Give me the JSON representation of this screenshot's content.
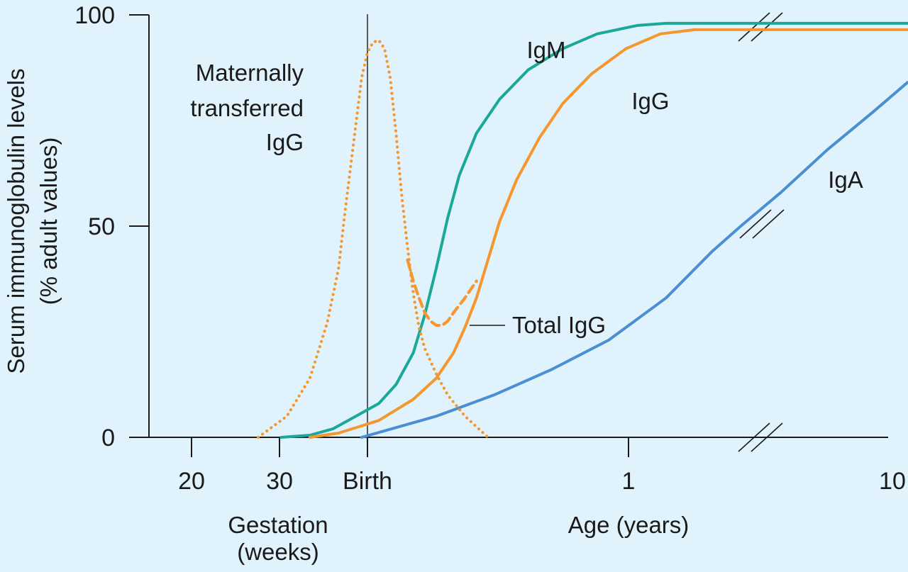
{
  "chart_data": {
    "type": "line",
    "title": "",
    "ylabel_lines": [
      "Serum immunoglobulin levels",
      "(% adult values)"
    ],
    "y_ticks": [
      0,
      50,
      100
    ],
    "ylim": [
      0,
      100
    ],
    "x_ticks": [
      {
        "label": "20"
      },
      {
        "label": "30"
      },
      {
        "label": "Birth"
      },
      {
        "label": "1"
      },
      {
        "label": "10"
      }
    ],
    "x_group_labels": [
      {
        "lines": [
          "Gestation",
          "(weeks)"
        ]
      },
      {
        "lines": [
          "Age (years)"
        ]
      }
    ],
    "axis_breaks": true,
    "grid": false,
    "legend": "none (direct labels)",
    "colors": {
      "IgM": "#1aa898",
      "IgG": "#f5962e",
      "IgA": "#4a8fd3",
      "marker": "#1a1a1a"
    },
    "series": [
      {
        "name": "IgM",
        "label_lines": [
          "IgM"
        ],
        "style": "solid",
        "color": "#1aa898",
        "points": [
          [
            23,
            0
          ],
          [
            28,
            0.5
          ],
          [
            32,
            2
          ],
          [
            36,
            5
          ],
          [
            40,
            8
          ],
          [
            43,
            12.5
          ],
          [
            46,
            20
          ],
          [
            48,
            29
          ],
          [
            50,
            40
          ],
          [
            52,
            52
          ],
          [
            54,
            62
          ],
          [
            57,
            72
          ],
          [
            61,
            80
          ],
          [
            66,
            87
          ],
          [
            72,
            92
          ],
          [
            78,
            95.5
          ],
          [
            85,
            97.5
          ],
          [
            90,
            98
          ],
          [
            120,
            98
          ],
          [
            132,
            98
          ]
        ]
      },
      {
        "name": "IgG",
        "label_lines": [
          "IgG"
        ],
        "style": "solid",
        "color": "#f5962e",
        "points": [
          [
            28,
            0
          ],
          [
            33,
            1
          ],
          [
            40,
            4
          ],
          [
            46,
            9
          ],
          [
            50,
            14
          ],
          [
            53,
            20
          ],
          [
            55,
            26
          ],
          [
            57,
            33
          ],
          [
            59,
            42
          ],
          [
            61,
            51
          ],
          [
            64,
            61
          ],
          [
            68,
            71
          ],
          [
            72,
            79
          ],
          [
            77,
            86
          ],
          [
            83,
            92
          ],
          [
            89,
            95.5
          ],
          [
            95,
            96.5
          ],
          [
            120,
            96.5
          ],
          [
            132,
            96.5
          ]
        ]
      },
      {
        "name": "IgA",
        "label_lines": [
          "IgA"
        ],
        "style": "solid",
        "color": "#4a8fd3",
        "points": [
          [
            37,
            0
          ],
          [
            50,
            5
          ],
          [
            60,
            10
          ],
          [
            70,
            16
          ],
          [
            80,
            23
          ],
          [
            90,
            33
          ],
          [
            98,
            44
          ],
          [
            103,
            50
          ],
          [
            110,
            58
          ],
          [
            118,
            68
          ],
          [
            126,
            77
          ],
          [
            132,
            84
          ]
        ]
      },
      {
        "name": "Maternally transferred IgG",
        "label_lines": [
          "Maternally",
          "transferred",
          "IgG"
        ],
        "style": "dotted",
        "color": "#f5962e",
        "points": [
          [
            19,
            0
          ],
          [
            24,
            5
          ],
          [
            28,
            14
          ],
          [
            31,
            27
          ],
          [
            33,
            40
          ],
          [
            34,
            52
          ],
          [
            35,
            63
          ],
          [
            36,
            74
          ],
          [
            37,
            85
          ],
          [
            38,
            91
          ],
          [
            39,
            93.5
          ],
          [
            40,
            94
          ],
          [
            41,
            92
          ],
          [
            42,
            85
          ],
          [
            43,
            72
          ],
          [
            44,
            57
          ],
          [
            45,
            45
          ],
          [
            46,
            34
          ],
          [
            47,
            26
          ],
          [
            48,
            21
          ],
          [
            50,
            15
          ],
          [
            52,
            10
          ],
          [
            55,
            5
          ],
          [
            59,
            0
          ]
        ]
      },
      {
        "name": "Total IgG",
        "label_lines": [
          "Total IgG"
        ],
        "style": "dashed",
        "color": "#f5962e",
        "points": [
          [
            45,
            42
          ],
          [
            46,
            37
          ],
          [
            47,
            33
          ],
          [
            48,
            29.5
          ],
          [
            49,
            27.5
          ],
          [
            50,
            26.5
          ],
          [
            51,
            26.5
          ],
          [
            52,
            27.5
          ],
          [
            53,
            29.5
          ],
          [
            55,
            33
          ],
          [
            57,
            37
          ]
        ]
      }
    ]
  }
}
